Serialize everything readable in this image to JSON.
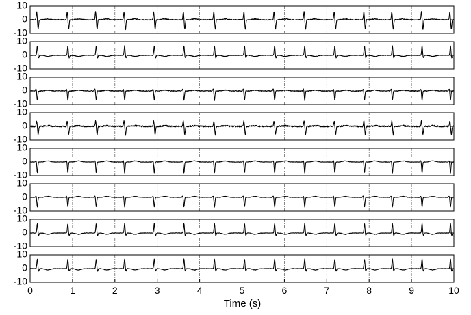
{
  "chart_data": {
    "type": "line",
    "xlabel": "Time (s)",
    "xlim": [
      0,
      10
    ],
    "x_ticks": [
      "0",
      "1",
      "2",
      "3",
      "4",
      "5",
      "6",
      "7",
      "8",
      "9",
      "10"
    ],
    "ylim": [
      -10,
      10
    ],
    "y_ticks": [
      "10",
      "0",
      "-10"
    ],
    "grid": "vertical dash-dot lines at every 1 s",
    "line_color": "#000000",
    "beat_times": [
      0.17,
      0.89,
      1.56,
      2.23,
      2.93,
      3.63,
      4.35,
      5.06,
      5.77,
      6.48,
      7.19,
      7.89,
      8.55,
      9.25,
      9.92
    ],
    "panels": [
      {
        "beat_shape": "biphasic",
        "spike_up": 6,
        "spike_down": -7,
        "noise": 0.6,
        "wave_amp": 0.6
      },
      {
        "beat_shape": "positive",
        "spike_up": 7,
        "spike_down": -2,
        "noise": 0.3,
        "wave_amp": -0.8
      },
      {
        "beat_shape": "negative",
        "spike_up": 1.5,
        "spike_down": -7,
        "noise": 0.5,
        "wave_amp": 0.6
      },
      {
        "beat_shape": "biphasic",
        "spike_up": 4,
        "spike_down": -6,
        "noise": 1.0,
        "wave_amp": 0.5
      },
      {
        "beat_shape": "negative",
        "spike_up": 1,
        "spike_down": -8,
        "noise": 0.3,
        "wave_amp": 0.8
      },
      {
        "beat_shape": "negative",
        "spike_up": 1,
        "spike_down": -7,
        "noise": 0.25,
        "wave_amp": 0.7
      },
      {
        "beat_shape": "positive",
        "spike_up": 7,
        "spike_down": -2,
        "noise": 0.3,
        "wave_amp": -1.0
      },
      {
        "beat_shape": "positive",
        "spike_up": 7,
        "spike_down": -2,
        "noise": 0.3,
        "wave_amp": -1.0
      }
    ]
  }
}
